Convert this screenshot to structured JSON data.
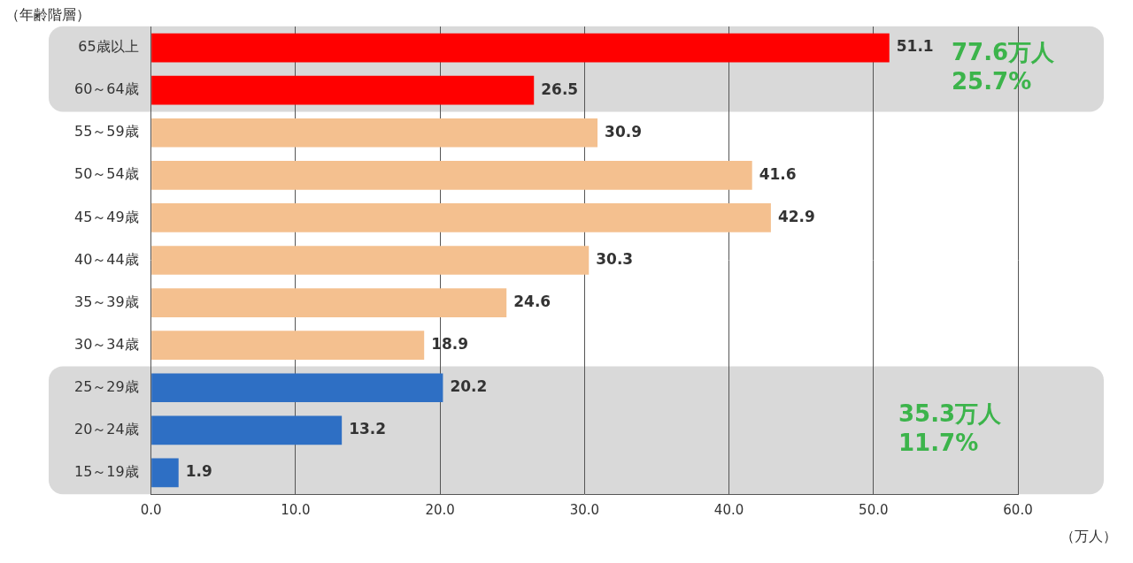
{
  "chart_data": {
    "type": "bar",
    "orientation": "horizontal",
    "y_label": "（年齢階層）",
    "x_label": "（万人）",
    "categories": [
      "65歳以上",
      "60～64歳",
      "55～59歳",
      "50～54歳",
      "45～49歳",
      "40～44歳",
      "35～39歳",
      "30～34歳",
      "25～29歳",
      "20～24歳",
      "15～19歳"
    ],
    "values": [
      51.1,
      26.5,
      30.9,
      41.6,
      42.9,
      30.3,
      24.6,
      18.9,
      20.2,
      13.2,
      1.9
    ],
    "colors": [
      "#ff0000",
      "#ff0000",
      "#f4c08f",
      "#f4c08f",
      "#f4c08f",
      "#f4c08f",
      "#f4c08f",
      "#f4c08f",
      "#2e6fc4",
      "#2e6fc4",
      "#2e6fc4"
    ],
    "xlim": [
      0,
      60
    ],
    "xticks": [
      {
        "value": 0,
        "label": "0.0"
      },
      {
        "value": 10,
        "label": "10.0"
      },
      {
        "value": 20,
        "label": "20.0"
      },
      {
        "value": 30,
        "label": "30.0"
      },
      {
        "value": 40,
        "label": "40.0"
      },
      {
        "value": 50,
        "label": "50.0"
      },
      {
        "value": 60,
        "label": "60.0"
      }
    ],
    "grid": true,
    "data_labels": true,
    "annotations": [
      {
        "lines": [
          "77.6万人",
          "25.7%"
        ],
        "categories": [
          "65歳以上",
          "60～64歳"
        ],
        "color": "#3cb44b"
      },
      {
        "lines": [
          "35.3万人",
          "11.7%"
        ],
        "categories": [
          "25～29歳",
          "20～24歳",
          "15～19歳"
        ],
        "color": "#3cb44b"
      }
    ]
  }
}
